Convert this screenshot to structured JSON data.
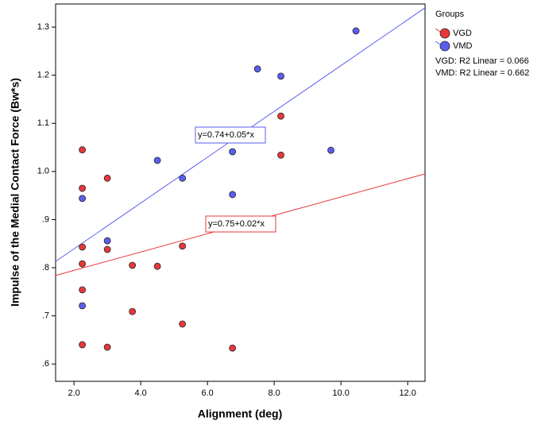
{
  "chart_data": {
    "type": "scatter",
    "x_label": "Alignment (deg)",
    "y_label": "Impulse of the Medial Contact Force (Bw*s)",
    "legend_title": "Groups",
    "xlim": [
      1.45,
      12.52
    ],
    "ylim": [
      0.564,
      1.348
    ],
    "xticks": [
      {
        "value": 2,
        "label": "2.0"
      },
      {
        "value": 4,
        "label": "4.0"
      },
      {
        "value": 6,
        "label": "6.0"
      },
      {
        "value": 8,
        "label": "8.0"
      },
      {
        "value": 10,
        "label": "10.0"
      },
      {
        "value": 12,
        "label": "12.0"
      }
    ],
    "yticks": [
      {
        "value": 0.6,
        "label": ".6"
      },
      {
        "value": 0.7,
        "label": ".7"
      },
      {
        "value": 0.8,
        "label": ".8"
      },
      {
        "value": 0.9,
        "label": ".9"
      },
      {
        "value": 1,
        "label": "1.0"
      },
      1.1,
      1.2,
      1.3
    ],
    "series": [
      {
        "name": "VGD",
        "color": "#e8383b",
        "x": [
          2.25,
          2.25,
          2.25,
          2.25,
          2.25,
          2.25,
          3.0,
          3.0,
          3.0,
          3.75,
          3.75,
          4.5,
          5.25,
          5.25,
          6.75,
          8.2,
          8.2
        ],
        "values": [
          1.045,
          0.965,
          0.843,
          0.808,
          0.754,
          0.64,
          0.986,
          0.838,
          0.635,
          0.805,
          0.709,
          0.803,
          0.845,
          0.683,
          0.633,
          1.115,
          1.034
        ]
      },
      {
        "name": "VMD",
        "color": "#5a5ef0",
        "x": [
          2.25,
          2.25,
          3.0,
          4.5,
          5.25,
          6.75,
          6.75,
          7.5,
          8.2,
          9.7,
          10.45
        ],
        "values": [
          0.944,
          0.721,
          0.856,
          1.023,
          0.986,
          1.041,
          0.952,
          1.213,
          1.198,
          1.044,
          1.292
        ]
      }
    ],
    "fit_lines": [
      {
        "label": "y=0.75+0.02*x",
        "color": "#e8383b",
        "x": [
          1.45,
          12.52
        ],
        "values": [
          0.784,
          0.995
        ]
      },
      {
        "label": "y=0.74+0.05*x",
        "color": "#5a5ef0",
        "x": [
          1.45,
          12.52
        ],
        "values": [
          0.813,
          1.34
        ]
      }
    ],
    "r2_labels": [
      "VGD: R2 Linear = 0.066",
      "VMD: R2 Linear = 0.662"
    ]
  }
}
